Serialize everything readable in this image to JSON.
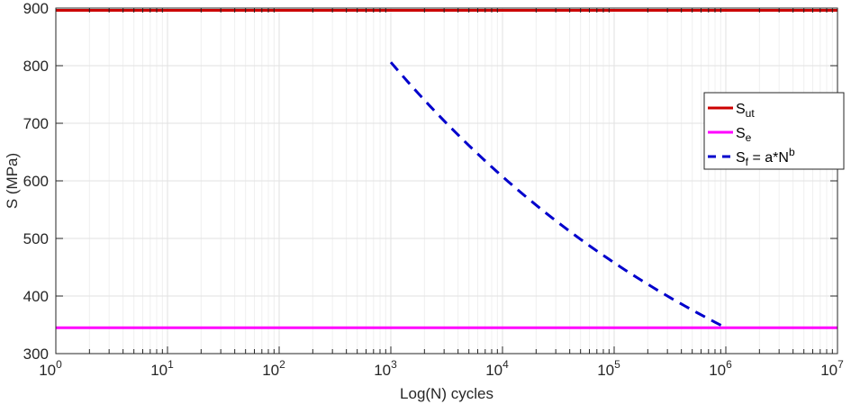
{
  "chart_data": {
    "type": "line",
    "title": "",
    "xlabel": "Log(N) cycles",
    "ylabel": "S (MPa)",
    "xscale": "log",
    "xlim": [
      1,
      10000000
    ],
    "ylim": [
      300,
      900
    ],
    "x_ticks": [
      {
        "base": "10",
        "exp": "0"
      },
      {
        "base": "10",
        "exp": "1"
      },
      {
        "base": "10",
        "exp": "2"
      },
      {
        "base": "10",
        "exp": "3"
      },
      {
        "base": "10",
        "exp": "4"
      },
      {
        "base": "10",
        "exp": "5"
      },
      {
        "base": "10",
        "exp": "6"
      },
      {
        "base": "10",
        "exp": "7"
      }
    ],
    "y_ticks": [
      "300",
      "400",
      "500",
      "600",
      "700",
      "800",
      "900"
    ],
    "grid": true,
    "legend_position": "right",
    "series": [
      {
        "name": "Sut",
        "legend": {
          "main": "S",
          "sub": "ut",
          "rest": ""
        },
        "color": "#cc0000",
        "style": "solid",
        "x": [
          1,
          10000000
        ],
        "y": [
          896,
          896
        ]
      },
      {
        "name": "Se",
        "legend": {
          "main": "S",
          "sub": "e",
          "rest": ""
        },
        "color": "#ff00ff",
        "style": "solid",
        "x": [
          1,
          10000000
        ],
        "y": [
          345,
          345
        ]
      },
      {
        "name": "Sf = a*N^b",
        "legend": {
          "main": "S",
          "sub": "f",
          "rest": " = a*N",
          "sup": "b"
        },
        "color": "#0000cc",
        "style": "dashed",
        "x": [
          1000,
          10000,
          100000,
          1000000
        ],
        "y": [
          806,
          607.5,
          457.8,
          345
        ]
      }
    ]
  }
}
